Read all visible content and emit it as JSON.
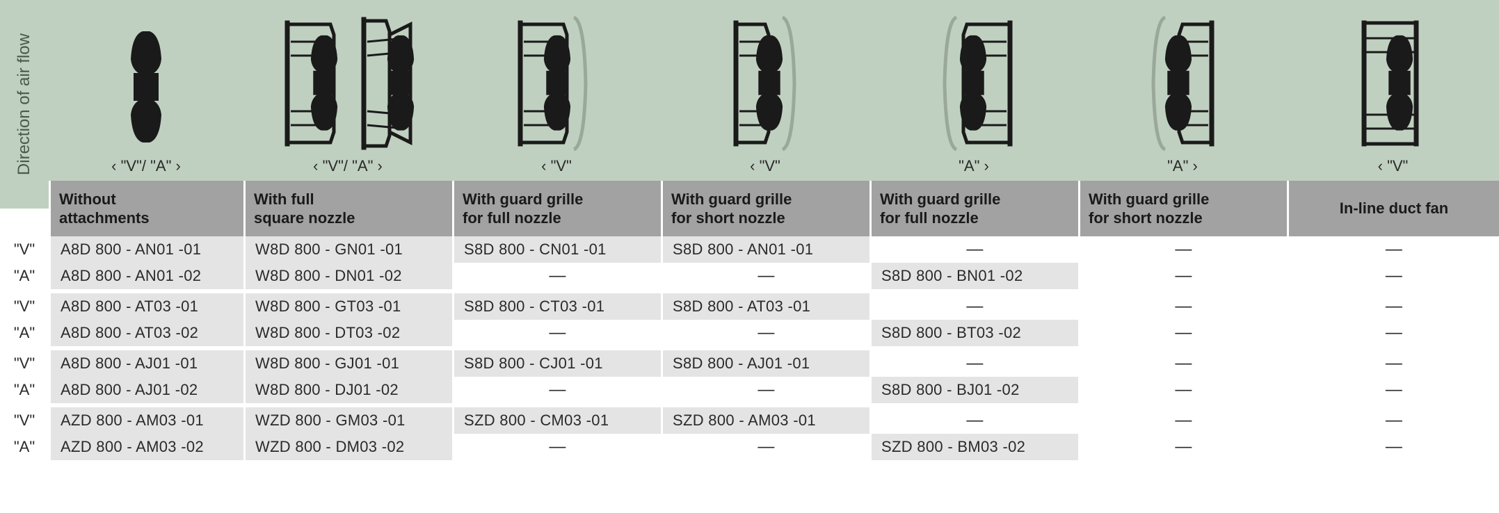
{
  "airflow_label": "Direction of air flow",
  "columns": [
    {
      "dir": "‹ \"V\"/ \"A\" ›",
      "header1": "Without",
      "header2": "attachments"
    },
    {
      "dir": "‹ \"V\"/ \"A\" ›",
      "header1": "With full",
      "header2": "square nozzle"
    },
    {
      "dir": "‹ \"V\"",
      "header1": "With guard grille",
      "header2": "for full nozzle"
    },
    {
      "dir": "‹ \"V\"",
      "header1": "With guard grille",
      "header2": "for short nozzle"
    },
    {
      "dir": "\"A\" ›",
      "header1": "With guard grille",
      "header2": "for full nozzle"
    },
    {
      "dir": "\"A\" ›",
      "header1": "With guard grille",
      "header2": "for short nozzle"
    },
    {
      "dir": "‹ \"V\"",
      "header1": "In-line duct fan",
      "header2": ""
    }
  ],
  "row_labels": {
    "v": "\"V\"",
    "a": "\"A\""
  },
  "groups": [
    {
      "v": [
        "A8D 800 - AN01  -01",
        "W8D 800 - GN01  -01",
        "S8D 800 - CN01  -01",
        "S8D 800 - AN01  -01",
        "—",
        "—",
        "—"
      ],
      "a": [
        "A8D 800 - AN01  -02",
        "W8D 800 - DN01  -02",
        "—",
        "—",
        "S8D 800 - BN01  -02",
        "—",
        "—"
      ]
    },
    {
      "v": [
        "A8D 800 - AT03  -01",
        "W8D 800 - GT03  -01",
        "S8D 800 - CT03  -01",
        "S8D 800 - AT03  -01",
        "—",
        "—",
        "—"
      ],
      "a": [
        "A8D 800 - AT03  -02",
        "W8D 800 - DT03  -02",
        "—",
        "—",
        "S8D 800 - BT03  -02",
        "—",
        "—"
      ]
    },
    {
      "v": [
        "A8D 800 - AJ01  -01",
        "W8D 800 - GJ01  -01",
        "S8D 800 - CJ01  -01",
        "S8D 800 - AJ01  -01",
        "—",
        "—",
        "—"
      ],
      "a": [
        "A8D 800 - AJ01  -02",
        "W8D 800 - DJ01  -02",
        "—",
        "—",
        "S8D 800 - BJ01  -02",
        "—",
        "—"
      ]
    },
    {
      "v": [
        "AZD 800 - AM03 -01",
        "WZD 800 - GM03 -01",
        "SZD 800 - CM03 -01",
        "SZD 800 - AM03 -01",
        "—",
        "—",
        "—"
      ],
      "a": [
        "AZD 800 - AM03 -02",
        "WZD 800 - DM03 -02",
        "—",
        "—",
        "SZD 800 - BM03 -02",
        "—",
        "—"
      ]
    }
  ],
  "colors": {
    "header_bg": "#a2a2a2",
    "icons_bg": "#c0d0c0",
    "cell_bg": "#e4e4e4",
    "empty_bg": "#ffffff",
    "text": "#2a2a2a"
  }
}
